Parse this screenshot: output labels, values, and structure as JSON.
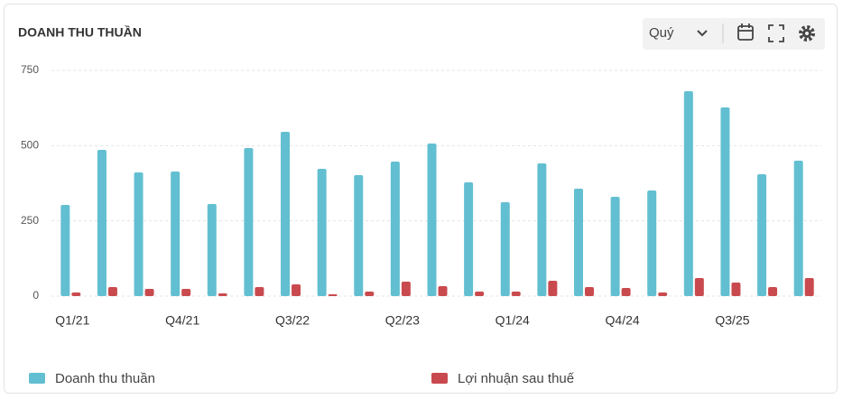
{
  "controls": {
    "period": "Quý"
  },
  "chart_data": {
    "type": "bar",
    "title": "DOANH THU THUẦN",
    "categories": [
      "Q1/21",
      null,
      null,
      "Q4/21",
      null,
      null,
      "Q3/22",
      null,
      null,
      "Q2/23",
      null,
      null,
      "Q1/24",
      null,
      null,
      "Q4/24",
      null,
      null,
      "Q3/25",
      null,
      null
    ],
    "series": [
      {
        "name": "Doanh thu thuần",
        "color": "#62bfd1",
        "values": [
          303,
          486,
          411,
          414,
          306,
          492,
          546,
          423,
          402,
          447,
          507,
          378,
          312,
          441,
          357,
          330,
          351,
          681,
          627,
          405,
          450
        ]
      },
      {
        "name": "Lợi nhuận sau thuế",
        "color": "#c94a4e",
        "values": [
          12,
          30,
          24,
          24,
          9,
          30,
          39,
          6,
          15,
          48,
          33,
          15,
          15,
          51,
          30,
          27,
          12,
          60,
          45,
          30,
          60
        ]
      }
    ],
    "ylim": [
      0,
      750
    ],
    "yticks": [
      0,
      250,
      500,
      750
    ],
    "grid": true,
    "legend": "bottom"
  }
}
